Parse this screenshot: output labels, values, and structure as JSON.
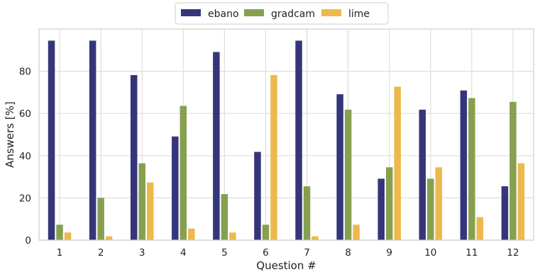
{
  "chart_data": {
    "type": "bar",
    "title": "",
    "xlabel": "Question #",
    "ylabel": "Answers [%]",
    "categories": [
      "1",
      "2",
      "3",
      "4",
      "5",
      "6",
      "7",
      "8",
      "9",
      "10",
      "11",
      "12"
    ],
    "series": [
      {
        "name": "ebano",
        "color": "#35367a",
        "values": [
          94.5,
          94.5,
          78.2,
          49.1,
          89.1,
          41.8,
          94.5,
          69.1,
          29.1,
          61.8,
          70.9,
          25.5
        ]
      },
      {
        "name": "gradcam",
        "color": "#86a050",
        "values": [
          7.3,
          20.0,
          36.4,
          63.6,
          21.8,
          7.3,
          25.5,
          61.8,
          34.5,
          29.1,
          67.3,
          65.5
        ]
      },
      {
        "name": "lime",
        "color": "#ecb94e",
        "values": [
          3.6,
          1.8,
          27.3,
          5.5,
          3.6,
          78.2,
          1.8,
          7.3,
          72.7,
          34.5,
          10.9,
          36.4
        ]
      }
    ],
    "ylim": [
      0,
      100
    ],
    "yticks": [
      0,
      20,
      40,
      60,
      80
    ],
    "grid": true,
    "legend_position": "top-center"
  }
}
